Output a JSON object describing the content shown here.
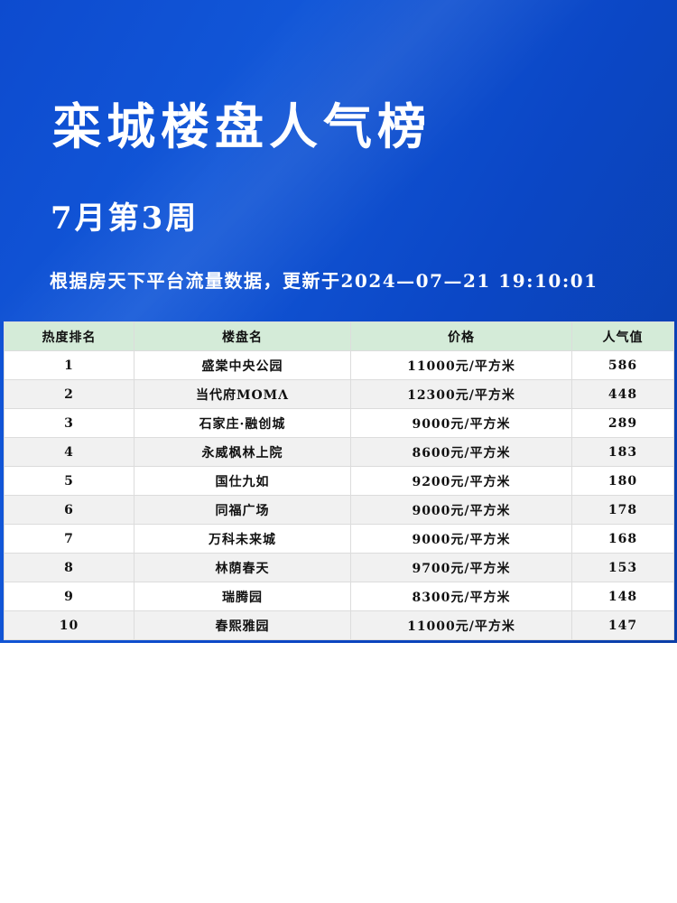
{
  "header": {
    "title": "栾城楼盘人气榜",
    "week": "7月第3周",
    "update_text": "根据房天下平台流量数据，更新于2024—07—21 19:10:01"
  },
  "colors": {
    "banner": "#0d4bcf",
    "table_header": "#d4ebd8",
    "row_alt": "#f1f1f1"
  },
  "table": {
    "headers": [
      "热度排名",
      "楼盘名",
      "价格",
      "人气值"
    ],
    "rows": [
      [
        "1",
        "盛棠中央公园",
        "11000元/平方米",
        "586"
      ],
      [
        "2",
        "当代府MOMΛ",
        "12300元/平方米",
        "448"
      ],
      [
        "3",
        "石家庄·融创城",
        "9000元/平方米",
        "289"
      ],
      [
        "4",
        "永威枫林上院",
        "8600元/平方米",
        "183"
      ],
      [
        "5",
        "国仕九如",
        "9200元/平方米",
        "180"
      ],
      [
        "6",
        "同福广场",
        "9000元/平方米",
        "178"
      ],
      [
        "7",
        "万科未来城",
        "9000元/平方米",
        "168"
      ],
      [
        "8",
        "林荫春天",
        "9700元/平方米",
        "153"
      ],
      [
        "9",
        "瑞腾园",
        "8300元/平方米",
        "148"
      ],
      [
        "10",
        "春熙雅园",
        "11000元/平方米",
        "147"
      ]
    ]
  }
}
